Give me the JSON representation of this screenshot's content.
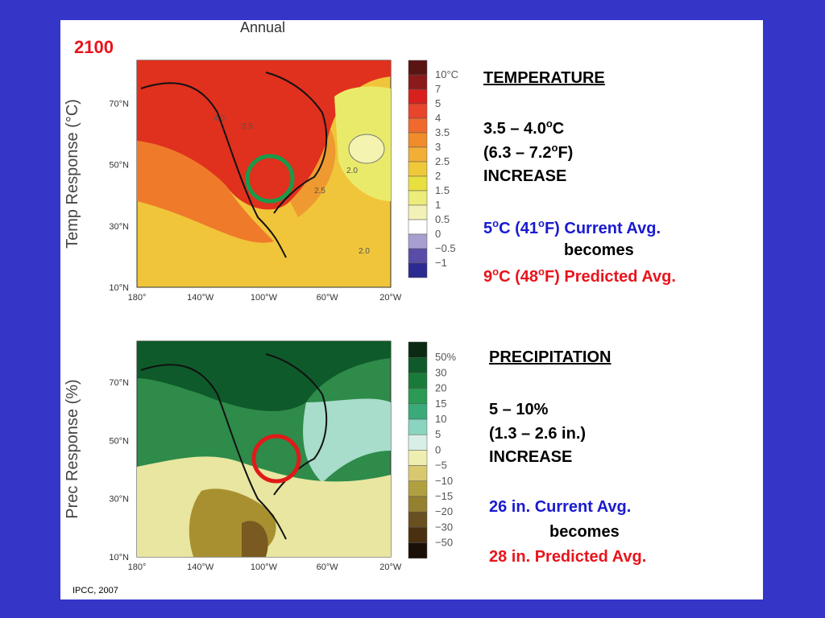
{
  "slide": {
    "year": "2100",
    "citation": "IPCC, 2007"
  },
  "figure": {
    "title": "Annual",
    "temperature_map": {
      "ylabel": "Temp Response (°C)",
      "lat_labels": [
        "70°N",
        "50°N",
        "30°N",
        "10°N"
      ],
      "lon_labels": [
        "180°",
        "140°W",
        "100°W",
        "60°W",
        "20°W"
      ],
      "colorbar_labels": [
        "10°C",
        "7",
        "5",
        "4",
        "3.5",
        "3",
        "2.5",
        "2",
        "1.5",
        "1",
        "0.5",
        "0",
        "−0.5",
        "−1"
      ],
      "contour_labels": [
        "4.0",
        "3.5",
        "2.5",
        "2.0",
        "2.0"
      ]
    },
    "precipitation_map": {
      "ylabel": "Prec Response (%)",
      "lat_labels": [
        "70°N",
        "50°N",
        "30°N",
        "10°N"
      ],
      "lon_labels": [
        "180°",
        "140°W",
        "100°W",
        "60°W",
        "20°W"
      ],
      "colorbar_labels": [
        "50%",
        "30",
        "20",
        "15",
        "10",
        "5",
        "0",
        "−5",
        "−10",
        "−15",
        "−20",
        "−30",
        "−50"
      ]
    }
  },
  "temperature_text": {
    "heading": "TEMPERATURE",
    "lines": [
      [
        "3.5 – 4.0",
        "o",
        "C"
      ],
      [
        "(6.3 – 7.2",
        "o",
        "F)"
      ],
      [
        "INCREASE"
      ],
      [
        "5",
        "o",
        "C (41",
        "o",
        "F) Current Avg."
      ],
      [
        "becomes"
      ],
      [
        "9",
        "o",
        "C (48",
        "o",
        "F) Predicted Avg."
      ]
    ]
  },
  "precipitation_text": {
    "heading": "PRECIPITATION",
    "lines": [
      [
        "5 – 10%"
      ],
      [
        "(1.3 – 2.6 in.)"
      ],
      [
        "INCREASE"
      ],
      [
        "26 in. Current Avg."
      ],
      [
        "becomes"
      ],
      [
        "28 in. Predicted Avg."
      ]
    ]
  }
}
